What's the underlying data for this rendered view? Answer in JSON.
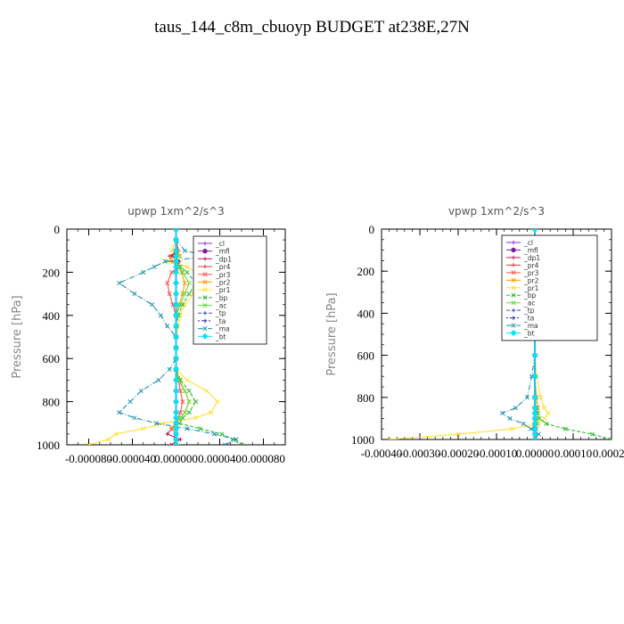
{
  "title": "taus_144_c8m_cbuoyp  BUDGET at238E,27N",
  "colors": {
    "cl": "#8a2be2",
    "mfl": "#7b1fa2",
    "dp1": "#c2185b",
    "pr4": "#e53935",
    "pr3": "#ff5252",
    "pr2": "#ff9800",
    "pr1": "#ffe033",
    "bp": "#2eb82e",
    "ac": "#66dd44",
    "tp": "#3a4fd0",
    "ta": "#2222aa",
    "ma": "#1f8fb0",
    "bt": "#00e5ff"
  },
  "chart_data": [
    {
      "type": "line",
      "title": "upwp   1xm^2/s^3",
      "ylabel": "Pressure [hPa]",
      "xlabel": "",
      "xlim": [
        -0.0001,
        0.0001
      ],
      "ylim": [
        1000,
        0
      ],
      "x_ticks": [
        -8e-05,
        -4e-05,
        0,
        4e-05,
        8e-05
      ],
      "x_tick_labels": [
        "-0.000080",
        "-0.000040",
        "0.000000",
        "0.000040",
        "0.000080"
      ],
      "y_ticks": [
        0,
        200,
        400,
        600,
        800,
        1000
      ],
      "y_tick_labels": [
        "0",
        "200",
        "400",
        "600",
        "800",
        "1000"
      ],
      "legend_position": "upper-right",
      "y": [
        0,
        50,
        100,
        125,
        150,
        175,
        200,
        250,
        300,
        350,
        400,
        450,
        500,
        550,
        600,
        650,
        700,
        750,
        800,
        850,
        875,
        900,
        925,
        950,
        975,
        1000
      ],
      "series": [
        {
          "name": "_cl",
          "key": "cl",
          "values": [
            0,
            0,
            0,
            0,
            0,
            0,
            0,
            0,
            0,
            0,
            0,
            0,
            0,
            0,
            0,
            0,
            0,
            0,
            0,
            0,
            0,
            0,
            0,
            0,
            0,
            0
          ]
        },
        {
          "name": "_mfl",
          "key": "mfl",
          "values": [
            0,
            0,
            0,
            0,
            0,
            0,
            0,
            0,
            0,
            0,
            0,
            0,
            0,
            0,
            0,
            0,
            0,
            0,
            0,
            0,
            0,
            0,
            0,
            0,
            0,
            0
          ]
        },
        {
          "name": "_dp1",
          "key": "dp1",
          "values": [
            0,
            0,
            2e-06,
            -4e-06,
            3e-06,
            2e-06,
            0,
            0,
            0,
            0,
            0,
            0,
            0,
            0,
            0,
            0,
            0,
            0,
            0,
            0,
            0,
            0,
            -4e-06,
            -8e-06,
            4e-06,
            -5e-06
          ]
        },
        {
          "name": "_pr4",
          "key": "pr4",
          "values": [
            0,
            0,
            2e-06,
            -6e-06,
            -4e-06,
            2e-06,
            0,
            0,
            0,
            0,
            0,
            0,
            0,
            0,
            0,
            0,
            0,
            0,
            0,
            0,
            0,
            0,
            0,
            0,
            0,
            0
          ]
        },
        {
          "name": "_pr3",
          "key": "pr3",
          "values": [
            0,
            0,
            1e-06,
            3e-06,
            -2e-06,
            3e-06,
            -4e-06,
            -8e-06,
            -6e-06,
            -3e-06,
            0,
            0,
            0,
            0,
            0,
            0,
            2e-06,
            4e-06,
            6e-06,
            4e-06,
            2e-06,
            0,
            0,
            0,
            0,
            0
          ]
        },
        {
          "name": "_pr2",
          "key": "pr2",
          "values": [
            0,
            0,
            1e-06,
            2e-06,
            -2e-06,
            2e-06,
            5e-06,
            8e-06,
            6e-06,
            3e-06,
            0,
            0,
            0,
            0,
            0,
            0,
            3e-06,
            8e-06,
            1.2e-05,
            8e-06,
            4e-06,
            0,
            -4e-06,
            0,
            0,
            0
          ]
        },
        {
          "name": "_pr1",
          "key": "pr1",
          "values": [
            0,
            0,
            -4e-06,
            4e-06,
            -8e-06,
            1e-05,
            1.8e-05,
            2.8e-05,
            1.6e-05,
            8e-06,
            4e-06,
            2e-06,
            0,
            0,
            0,
            0,
            1e-05,
            2.8e-05,
            3.8e-05,
            3.2e-05,
            1.8e-05,
            -1.2e-05,
            -3e-05,
            -5.5e-05,
            -6.2e-05,
            -8e-05
          ]
        },
        {
          "name": "_bp",
          "key": "bp",
          "values": [
            0,
            0,
            0,
            2e-06,
            0,
            4e-06,
            1e-05,
            1.8e-05,
            1.2e-05,
            6e-06,
            2e-06,
            0,
            0,
            0,
            0,
            0,
            4e-06,
            1.2e-05,
            1.8e-05,
            1.2e-05,
            6e-06,
            3e-06,
            2.2e-05,
            4.2e-05,
            5.2e-05,
            6e-05
          ]
        },
        {
          "name": "_ac",
          "key": "ac",
          "values": [
            0,
            0,
            0,
            2e-06,
            0,
            3e-06,
            6e-06,
            1.2e-05,
            8e-06,
            4e-06,
            0,
            0,
            0,
            0,
            0,
            0,
            2e-06,
            8e-06,
            1.2e-05,
            8e-06,
            4e-06,
            0,
            0,
            0,
            0,
            0
          ]
        },
        {
          "name": "_tp",
          "key": "tp",
          "values": [
            0,
            0,
            0,
            0,
            0,
            0,
            0,
            0,
            0,
            0,
            0,
            0,
            0,
            0,
            0,
            0,
            0,
            0,
            0,
            0,
            0,
            0,
            0,
            0,
            0,
            0
          ]
        },
        {
          "name": "_ta",
          "key": "ta",
          "values": [
            0,
            0,
            0,
            0,
            0,
            0,
            0,
            0,
            0,
            0,
            0,
            0,
            0,
            0,
            0,
            0,
            0,
            0,
            0,
            0,
            0,
            0,
            0,
            0,
            0,
            0
          ]
        },
        {
          "name": "_ma",
          "key": "ma",
          "values": [
            0,
            0,
            8e-06,
            3e-05,
            -1e-05,
            -2e-05,
            -3e-05,
            -5.2e-05,
            -3.8e-05,
            -2.2e-05,
            -1.4e-05,
            -8e-06,
            0,
            0,
            0,
            -6e-06,
            -1.6e-05,
            -3.2e-05,
            -4.2e-05,
            -5.2e-05,
            -3.8e-05,
            -1.8e-05,
            1e-05,
            3.5e-05,
            5.5e-05,
            4.5e-05
          ]
        },
        {
          "name": "_bt",
          "key": "bt",
          "values": [
            0,
            0,
            0,
            0,
            0,
            0,
            0,
            0,
            0,
            0,
            0,
            0,
            0,
            0,
            0,
            0,
            0,
            0,
            0,
            0,
            0,
            0,
            0,
            0,
            0,
            0
          ]
        }
      ]
    },
    {
      "type": "line",
      "title": "vpwp   1xm^2/s^3",
      "ylabel": "Pressure [hPa]",
      "xlabel": "",
      "xlim": [
        -0.0004,
        0.0002
      ],
      "ylim": [
        1000,
        0
      ],
      "x_ticks": [
        -0.0004,
        -0.0003,
        -0.0002,
        -0.0001,
        0,
        0.0001,
        0.0002
      ],
      "x_tick_labels": [
        "-0.00040",
        "-0.00030",
        "-0.00020",
        "-0.00010",
        "0.00000",
        "0.00010",
        "0.00020"
      ],
      "y_ticks": [
        0,
        200,
        400,
        600,
        800,
        1000
      ],
      "y_tick_labels": [
        "0",
        "200",
        "400",
        "600",
        "800",
        "1000"
      ],
      "legend_position": "upper-right",
      "y": [
        0,
        100,
        150,
        200,
        250,
        300,
        400,
        500,
        600,
        700,
        800,
        850,
        875,
        900,
        925,
        950,
        975,
        1000
      ],
      "series": [
        {
          "name": "_cl",
          "key": "cl",
          "values": [
            0,
            0,
            0,
            0,
            0,
            0,
            0,
            0,
            0,
            0,
            0,
            0,
            0,
            0,
            0,
            0,
            0,
            0
          ]
        },
        {
          "name": "_mfl",
          "key": "mfl",
          "values": [
            0,
            0,
            0,
            0,
            0,
            0,
            0,
            0,
            0,
            0,
            0,
            0,
            0,
            0,
            0,
            0,
            0,
            0
          ]
        },
        {
          "name": "_dp1",
          "key": "dp1",
          "values": [
            0,
            0,
            0,
            0,
            0,
            0,
            0,
            0,
            0,
            0,
            0,
            0,
            0,
            0,
            0,
            -5e-06,
            5e-06,
            0
          ]
        },
        {
          "name": "_pr4",
          "key": "pr4",
          "values": [
            0,
            0,
            0,
            0,
            0,
            0,
            0,
            0,
            0,
            0,
            0,
            0,
            0,
            0,
            0,
            0,
            0,
            0
          ]
        },
        {
          "name": "_pr3",
          "key": "pr3",
          "values": [
            0,
            0,
            0,
            0,
            0,
            0,
            0,
            0,
            0,
            0,
            0,
            0,
            0,
            0,
            0,
            0,
            0,
            0
          ]
        },
        {
          "name": "_pr2",
          "key": "pr2",
          "values": [
            0,
            0,
            0,
            0,
            0,
            0,
            0,
            0,
            0,
            0,
            4e-06,
            8e-06,
            6e-06,
            4e-06,
            0,
            0,
            0,
            0
          ]
        },
        {
          "name": "_pr1",
          "key": "pr1",
          "values": [
            0,
            0,
            0,
            0,
            0,
            0,
            0,
            0,
            0,
            5e-06,
            1.5e-05,
            2.5e-05,
            3.5e-05,
            2.5e-05,
            1e-05,
            -6e-05,
            -0.0002,
            -0.00038
          ]
        },
        {
          "name": "_bp",
          "key": "bp",
          "values": [
            0,
            0,
            0,
            0,
            0,
            0,
            0,
            0,
            0,
            0,
            0,
            4e-06,
            8e-06,
            1.2e-05,
            3e-05,
            8e-05,
            0.00015,
            0.0002
          ]
        },
        {
          "name": "_ac",
          "key": "ac",
          "values": [
            0,
            0,
            0,
            0,
            0,
            0,
            0,
            0,
            0,
            0,
            0,
            2e-06,
            4e-06,
            6e-06,
            6e-06,
            4e-06,
            0,
            0
          ]
        },
        {
          "name": "_tp",
          "key": "tp",
          "values": [
            0,
            0,
            0,
            0,
            0,
            0,
            0,
            0,
            0,
            0,
            0,
            0,
            0,
            0,
            0,
            0,
            0,
            0
          ]
        },
        {
          "name": "_ta",
          "key": "ta",
          "values": [
            0,
            0,
            0,
            0,
            0,
            0,
            0,
            0,
            0,
            0,
            0,
            0,
            0,
            0,
            0,
            0,
            0,
            0
          ]
        },
        {
          "name": "_ma",
          "key": "ma",
          "values": [
            0,
            2e-06,
            -4e-06,
            -6e-06,
            -1.2e-05,
            -6e-06,
            -2e-06,
            0,
            0,
            -8e-06,
            -2e-05,
            -5e-05,
            -8.5e-05,
            -6.5e-05,
            -3e-05,
            -1e-05,
            1e-05,
            0
          ]
        },
        {
          "name": "_bt",
          "key": "bt",
          "values": [
            0,
            0,
            0,
            0,
            0,
            0,
            0,
            0,
            0,
            0,
            0,
            0,
            0,
            0,
            0,
            0,
            0,
            0
          ]
        }
      ]
    }
  ]
}
